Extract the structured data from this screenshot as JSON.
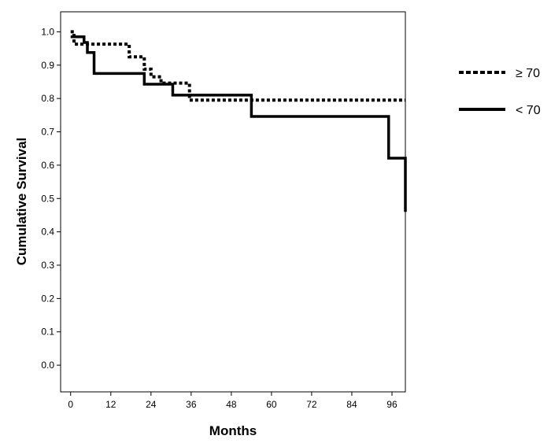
{
  "chart_data": {
    "type": "line",
    "subtype": "kaplan-meier-step",
    "xlabel": "Months",
    "ylabel": "Cumulative Survival",
    "xlim": [
      -3,
      100
    ],
    "ylim": [
      -0.08,
      1.06
    ],
    "xticks": [
      "0",
      "12",
      "24",
      "36",
      "48",
      "60",
      "72",
      "84",
      "96"
    ],
    "yticks": [
      "0.0",
      "0.1",
      "0.2",
      "0.3",
      "0.4",
      "0.5",
      "0.6",
      "0.7",
      "0.8",
      "0.9",
      "1.0"
    ],
    "grid": false,
    "legend_position": "right",
    "series": [
      {
        "name": "≥ 70",
        "style": "dotted",
        "color": "#000000",
        "x": [
          0,
          1,
          17.5,
          22,
          24,
          27,
          35.5,
          100
        ],
        "y": [
          1.0,
          0.963,
          0.925,
          0.888,
          0.865,
          0.846,
          0.795,
          0.795
        ]
      },
      {
        "name": "< 70",
        "style": "solid",
        "color": "#000000",
        "x": [
          0,
          4,
          5,
          7,
          22,
          30.5,
          54,
          95,
          100
        ],
        "y": [
          0.985,
          0.968,
          0.938,
          0.875,
          0.843,
          0.81,
          0.746,
          0.621,
          0.46
        ]
      }
    ]
  }
}
